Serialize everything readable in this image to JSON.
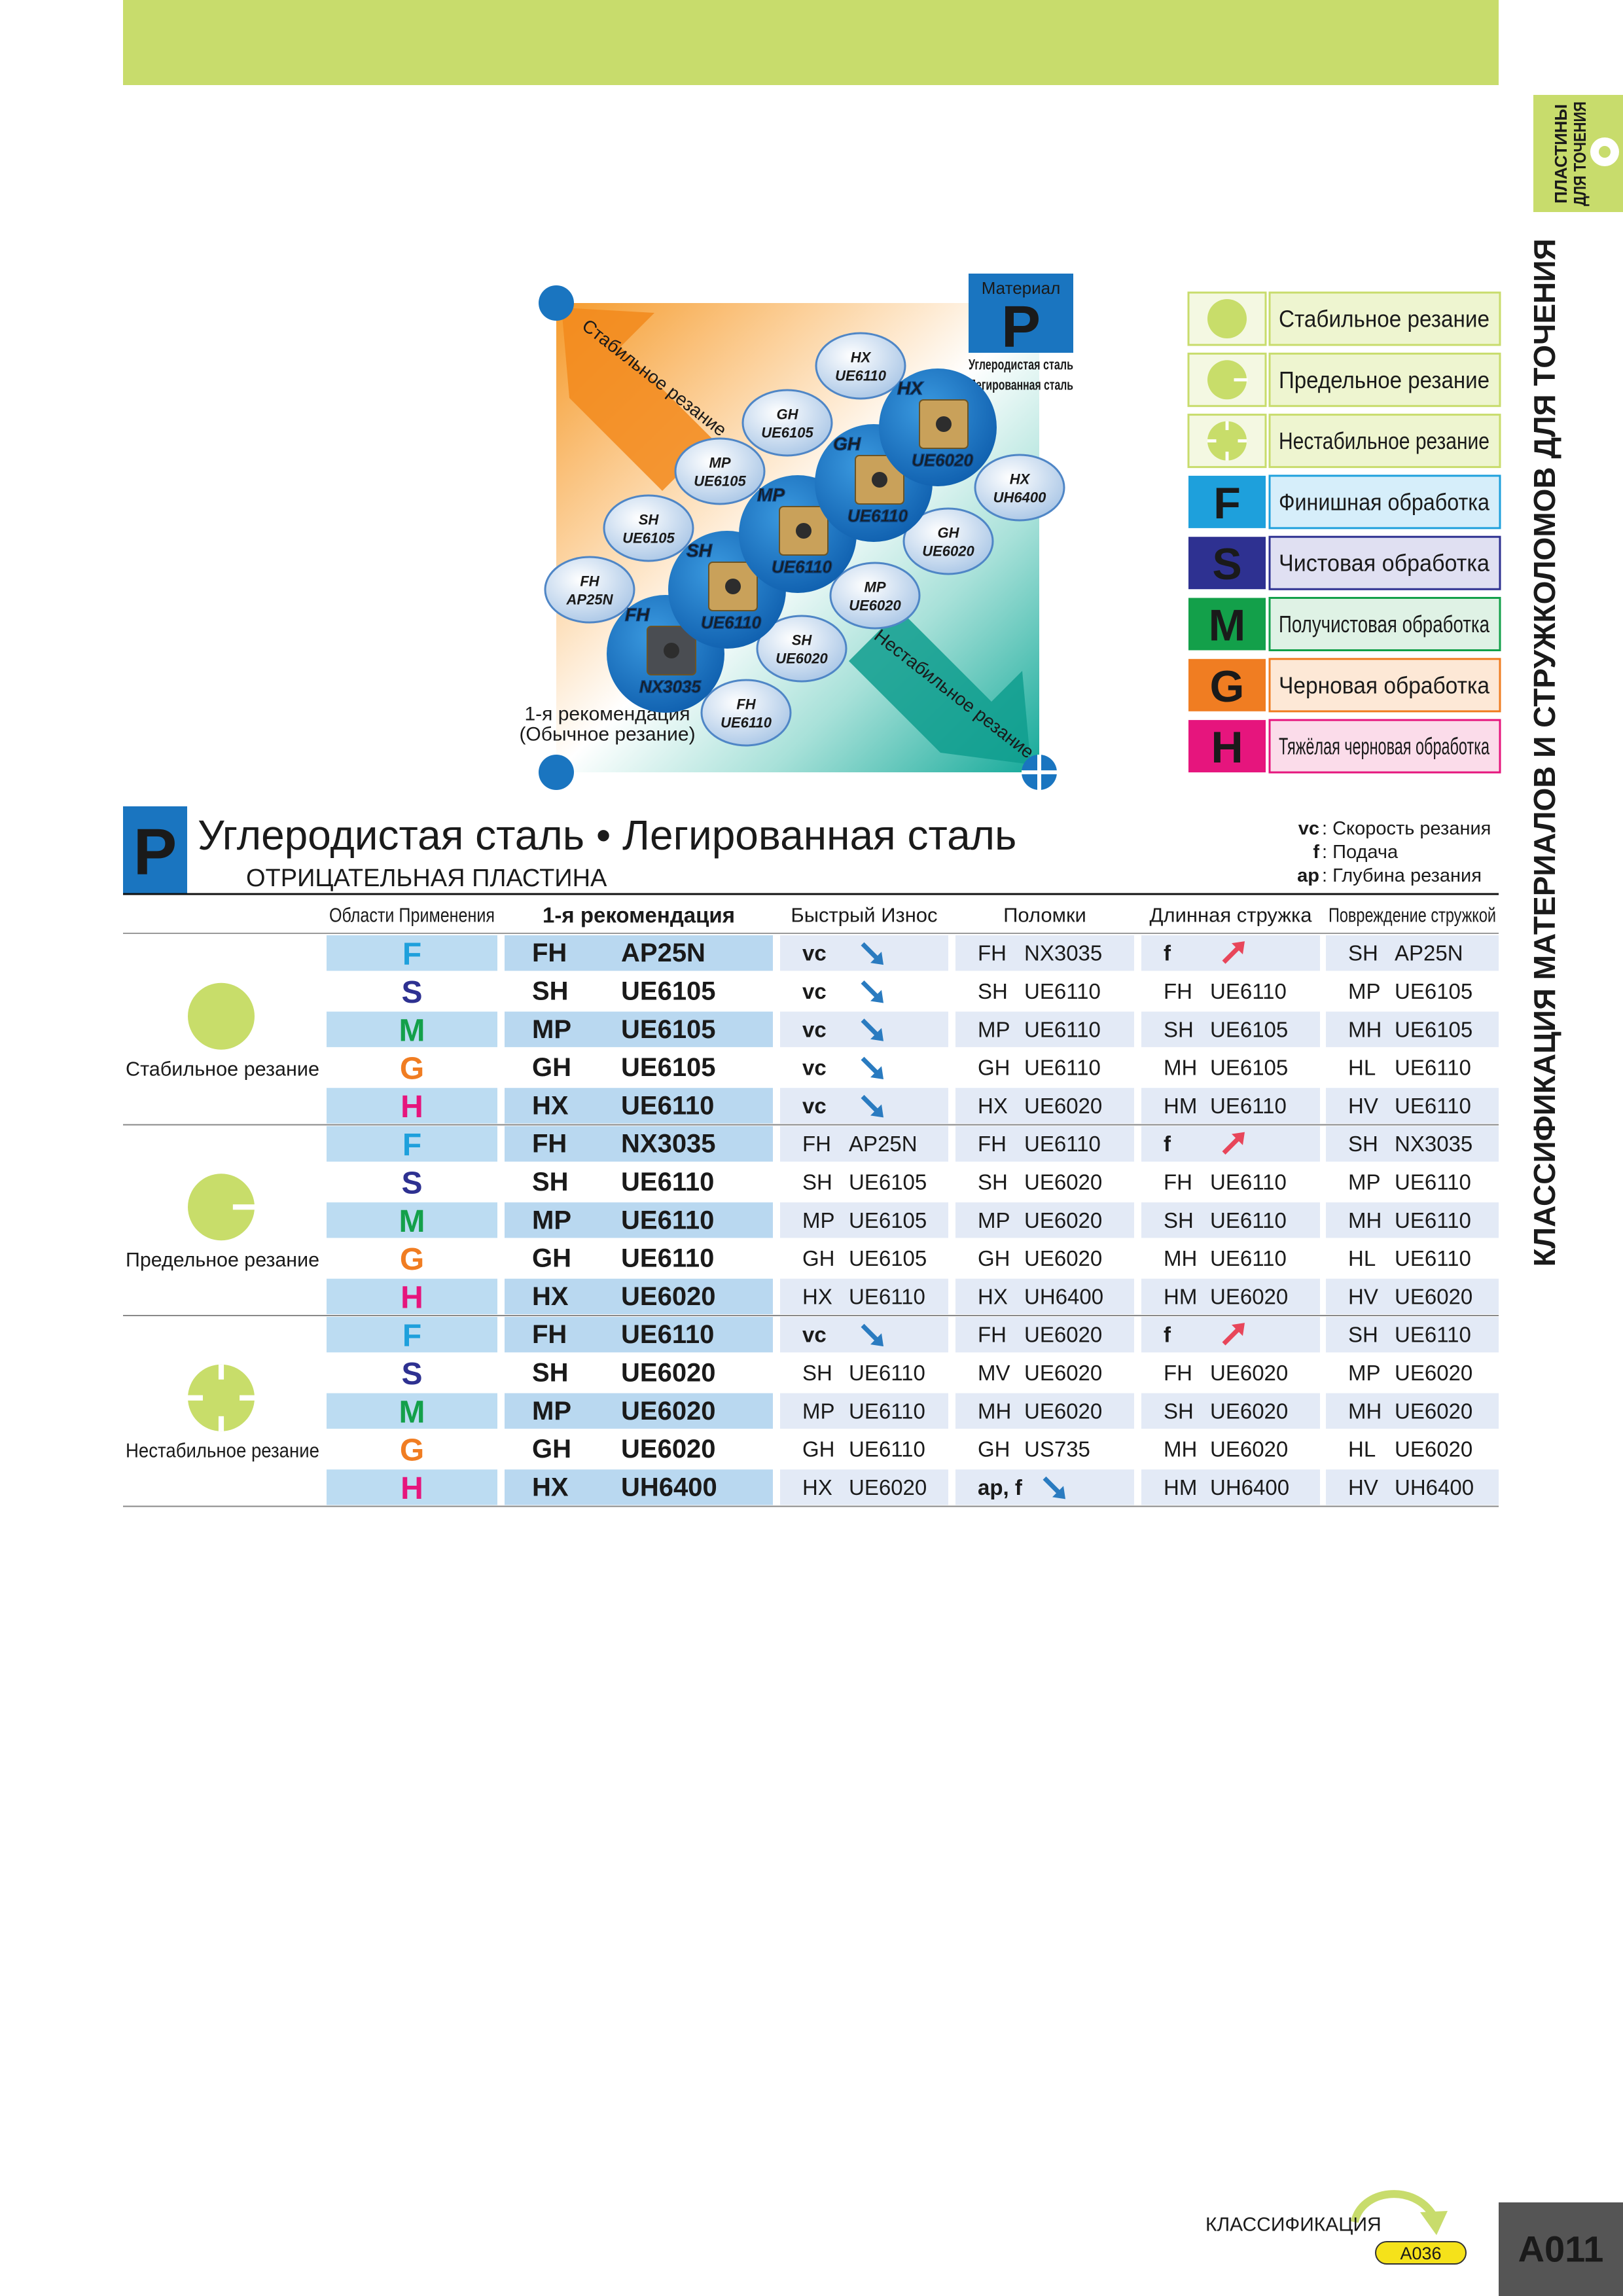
{
  "side_tab": [
    "ПЛАСТИНЫ",
    "ДЛЯ ТОЧЕНИЯ"
  ],
  "side_title": "КЛАССИФИКАЦИЯ МАТЕРИАЛОВ И СТРУЖКОЛОМОВ ДЛЯ ТОЧЕНИЯ",
  "diagram": {
    "material_caption": "Материал",
    "material": "P",
    "material_names": [
      "Углеродистая сталь",
      "Легированная сталь"
    ],
    "stable_axis": "Стабильное резание",
    "unstable_axis": "Нестабильное резание",
    "origin_label": [
      "1-я рекомендация",
      "(Обычное резание)"
    ],
    "main_inserts": [
      [
        "FH",
        "NX3035"
      ],
      [
        "SH",
        "UE6110"
      ],
      [
        "MP",
        "UE6110"
      ],
      [
        "GH",
        "UE6110"
      ],
      [
        "HX",
        "UE6020"
      ]
    ],
    "alternatives": [
      [
        "HX",
        "UE6110"
      ],
      [
        "GH",
        "UE6105"
      ],
      [
        "HX",
        "UH6400"
      ],
      [
        "MP",
        "UE6105"
      ],
      [
        "SH",
        "UE6105"
      ],
      [
        "GH",
        "UE6020"
      ],
      [
        "FH",
        "AP25N"
      ],
      [
        "MP",
        "UE6020"
      ],
      [
        "SH",
        "UE6020"
      ],
      [
        "FH",
        "UE6110"
      ]
    ]
  },
  "legend": {
    "conditions": [
      "Стабильное резание",
      "Предельное резание",
      "Нестабильное резание"
    ],
    "operations": [
      [
        "F",
        "Финишная обработка"
      ],
      [
        "S",
        "Чистовая обработка"
      ],
      [
        "M",
        "Получистовая обработка"
      ],
      [
        "G",
        "Черновая обработка"
      ],
      [
        "H",
        "Тяжёлая черновая обработка"
      ]
    ]
  },
  "section": {
    "letter": "P",
    "title": "Углеродистая сталь • Легированная сталь",
    "subtitle": "ОТРИЦАТЕЛЬНАЯ ПЛАСТИНА",
    "abbreviations": [
      [
        "vc",
        ": Скорость резания"
      ],
      [
        "f",
        ": Подача"
      ],
      [
        "ap",
        ": Глубина резания"
      ]
    ]
  },
  "table": {
    "headers": [
      "Области Применения",
      "1-я рекомендация",
      "Быстрый Износ",
      "Поломки",
      "Длинная стружка",
      "Повреждение стружкой"
    ],
    "groups": [
      {
        "condition": "Стабильное резание",
        "rows": [
          {
            "op": "F",
            "rec": [
              "FH",
              "AP25N"
            ],
            "cells": [
              {
                "text": "vc",
                "arrow": "down"
              },
              [
                "FH",
                "NX3035"
              ],
              {
                "text": "f",
                "arrow": "up"
              },
              [
                "SH",
                "AP25N"
              ]
            ]
          },
          {
            "op": "S",
            "rec": [
              "SH",
              "UE6105"
            ],
            "cells": [
              {
                "text": "vc",
                "arrow": "down"
              },
              [
                "SH",
                "UE6110"
              ],
              [
                "FH",
                "UE6110"
              ],
              [
                "MP",
                "UE6105"
              ]
            ]
          },
          {
            "op": "M",
            "rec": [
              "MP",
              "UE6105"
            ],
            "cells": [
              {
                "text": "vc",
                "arrow": "down"
              },
              [
                "MP",
                "UE6110"
              ],
              [
                "SH",
                "UE6105"
              ],
              [
                "MH",
                "UE6105"
              ]
            ]
          },
          {
            "op": "G",
            "rec": [
              "GH",
              "UE6105"
            ],
            "cells": [
              {
                "text": "vc",
                "arrow": "down"
              },
              [
                "GH",
                "UE6110"
              ],
              [
                "MH",
                "UE6105"
              ],
              [
                "HL",
                "UE6110"
              ]
            ]
          },
          {
            "op": "H",
            "rec": [
              "HX",
              "UE6110"
            ],
            "cells": [
              {
                "text": "vc",
                "arrow": "down"
              },
              [
                "HX",
                "UE6020"
              ],
              [
                "HM",
                "UE6110"
              ],
              [
                "HV",
                "UE6110"
              ]
            ]
          }
        ]
      },
      {
        "condition": "Предельное резание",
        "rows": [
          {
            "op": "F",
            "rec": [
              "FH",
              "NX3035"
            ],
            "cells": [
              [
                "FH",
                "AP25N"
              ],
              [
                "FH",
                "UE6110"
              ],
              {
                "text": "f",
                "arrow": "up"
              },
              [
                "SH",
                "NX3035"
              ]
            ]
          },
          {
            "op": "S",
            "rec": [
              "SH",
              "UE6110"
            ],
            "cells": [
              [
                "SH",
                "UE6105"
              ],
              [
                "SH",
                "UE6020"
              ],
              [
                "FH",
                "UE6110"
              ],
              [
                "MP",
                "UE6110"
              ]
            ]
          },
          {
            "op": "M",
            "rec": [
              "MP",
              "UE6110"
            ],
            "cells": [
              [
                "MP",
                "UE6105"
              ],
              [
                "MP",
                "UE6020"
              ],
              [
                "SH",
                "UE6110"
              ],
              [
                "MH",
                "UE6110"
              ]
            ]
          },
          {
            "op": "G",
            "rec": [
              "GH",
              "UE6110"
            ],
            "cells": [
              [
                "GH",
                "UE6105"
              ],
              [
                "GH",
                "UE6020"
              ],
              [
                "MH",
                "UE6110"
              ],
              [
                "HL",
                "UE6110"
              ]
            ]
          },
          {
            "op": "H",
            "rec": [
              "HX",
              "UE6020"
            ],
            "cells": [
              [
                "HX",
                "UE6110"
              ],
              [
                "HX",
                "UH6400"
              ],
              [
                "HM",
                "UE6020"
              ],
              [
                "HV",
                "UE6020"
              ]
            ]
          }
        ]
      },
      {
        "condition": "Нестабильное резание",
        "rows": [
          {
            "op": "F",
            "rec": [
              "FH",
              "UE6110"
            ],
            "cells": [
              {
                "text": "vc",
                "arrow": "down"
              },
              [
                "FH",
                "UE6020"
              ],
              {
                "text": "f",
                "arrow": "up"
              },
              [
                "SH",
                "UE6110"
              ]
            ]
          },
          {
            "op": "S",
            "rec": [
              "SH",
              "UE6020"
            ],
            "cells": [
              [
                "SH",
                "UE6110"
              ],
              [
                "MV",
                "UE6020"
              ],
              [
                "FH",
                "UE6020"
              ],
              [
                "MP",
                "UE6020"
              ]
            ]
          },
          {
            "op": "M",
            "rec": [
              "MP",
              "UE6020"
            ],
            "cells": [
              [
                "MP",
                "UE6110"
              ],
              [
                "MH",
                "UE6020"
              ],
              [
                "SH",
                "UE6020"
              ],
              [
                "MH",
                "UE6020"
              ]
            ]
          },
          {
            "op": "G",
            "rec": [
              "GH",
              "UE6020"
            ],
            "cells": [
              [
                "GH",
                "UE6110"
              ],
              [
                "GH",
                "US735"
              ],
              [
                "MH",
                "UE6020"
              ],
              [
                "HL",
                "UE6020"
              ]
            ]
          },
          {
            "op": "H",
            "rec": [
              "HX",
              "UH6400"
            ],
            "cells": [
              [
                "HX",
                "UE6020"
              ],
              {
                "text": "ap, f",
                "arrow": "down"
              },
              [
                "HM",
                "UH6400"
              ],
              [
                "HV",
                "UH6400"
              ]
            ]
          }
        ]
      }
    ]
  },
  "footer": {
    "label": "КЛАССИФИКАЦИЯ",
    "ref": "A036",
    "page": "A011"
  }
}
